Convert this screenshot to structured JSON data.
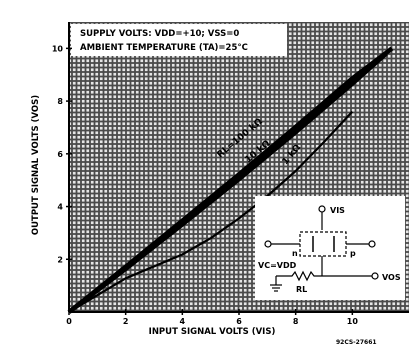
{
  "chart_data": {
    "type": "line",
    "header": {
      "line1": "SUPPLY VOLTS: VDD=+10; VSS=0",
      "line2": "AMBIENT TEMPERATURE (TA)=25°C"
    },
    "xlabel": "INPUT SIGNAL VOLTS (VIS)",
    "ylabel": "OUTPUT SIGNAL VOLTS (VOS)",
    "xlim": [
      0,
      12
    ],
    "ylim": [
      0,
      11
    ],
    "x_ticks": [
      "0",
      "2",
      "4",
      "6",
      "8",
      "10"
    ],
    "y_ticks": [
      "2",
      "4",
      "6",
      "8",
      "10"
    ],
    "grid": true,
    "series": [
      {
        "name": "RL=100 kΩ",
        "x": [
          0,
          2,
          4,
          6,
          8,
          10,
          11.4
        ],
        "y": [
          0,
          1.72,
          3.46,
          5.22,
          7.02,
          8.86,
          10.0
        ]
      },
      {
        "name": "10 kΩ",
        "x": [
          0,
          2,
          4,
          6,
          8,
          10,
          11.2
        ],
        "y": [
          0,
          1.64,
          3.32,
          5.04,
          6.82,
          8.66,
          9.8
        ]
      },
      {
        "name": "1 kΩ",
        "x": [
          0,
          2,
          4,
          5,
          6,
          7,
          8,
          9,
          10
        ],
        "y": [
          0,
          1.28,
          2.18,
          2.8,
          3.55,
          4.4,
          5.35,
          6.45,
          7.6
        ]
      }
    ],
    "inset": {
      "vis": "VIS",
      "vos": "VOS",
      "n": "n",
      "p": "p",
      "vc": "VC=VDD",
      "rl": "RL"
    },
    "figure_code": "92CS-27661"
  }
}
